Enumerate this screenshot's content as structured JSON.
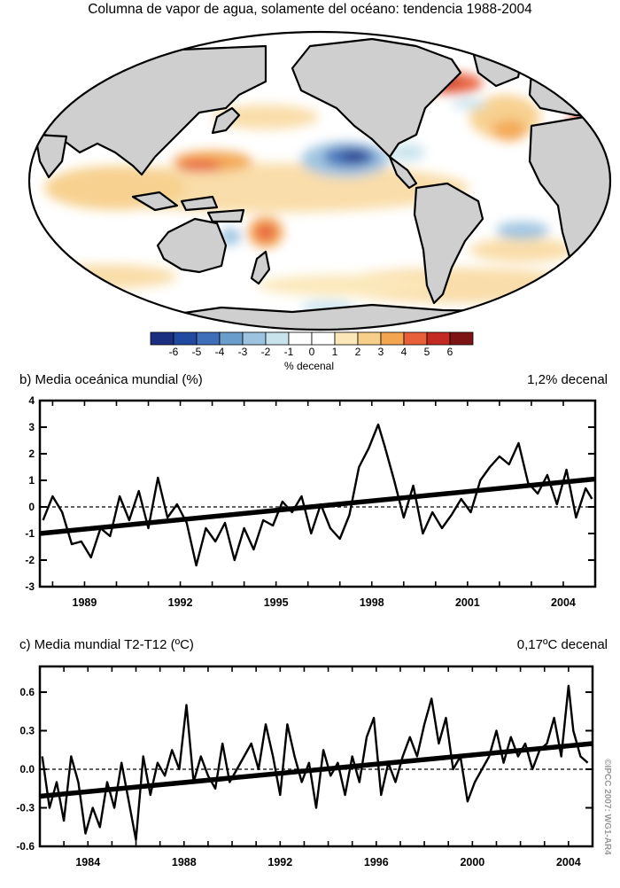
{
  "map": {
    "title": "Columna de vapor de agua, solamente del océano: tendencia 1988-2004",
    "colorbar": {
      "ticks": [
        "-6",
        "-5",
        "-4",
        "-3",
        "-2",
        "-1",
        "0",
        "1",
        "2",
        "3",
        "4",
        "5",
        "6"
      ],
      "colors": [
        "#1a2f80",
        "#2249a0",
        "#3f6fb8",
        "#6a9ccc",
        "#9cc3e0",
        "#c8e3ec",
        "#ffffff",
        "#ffffff",
        "#fbe7b8",
        "#f7cf8a",
        "#f3a64f",
        "#e8603a",
        "#c22a22",
        "#7f1414"
      ],
      "unit_label": "% decenal"
    }
  },
  "panel_b": {
    "label": "b) Media oceánica mundial (%)",
    "trend_label": "1,2% decenal"
  },
  "panel_c": {
    "label": "c) Media mundial T2-T12 (ºC)",
    "trend_label": "0,17ºC decenal"
  },
  "watermark": "©IPCC 2007: WG1-AR4",
  "chart_data": [
    {
      "type": "line",
      "title": "b) Media oceánica mundial (%)",
      "xlabel": "",
      "ylabel": "%",
      "xlim": [
        1987.6,
        2005.0
      ],
      "ylim": [
        -3,
        4
      ],
      "xticks": [
        1989,
        1992,
        1995,
        1998,
        2001,
        2004
      ],
      "yticks": [
        -3,
        -2,
        -1,
        0,
        1,
        2,
        3,
        4
      ],
      "series": [
        {
          "name": "anomaly",
          "x": [
            1987.7,
            1988.0,
            1988.3,
            1988.6,
            1988.9,
            1989.2,
            1989.5,
            1989.8,
            1990.1,
            1990.4,
            1990.7,
            1991.0,
            1991.3,
            1991.6,
            1991.9,
            1992.2,
            1992.5,
            1992.8,
            1993.1,
            1993.4,
            1993.7,
            1994.0,
            1994.3,
            1994.6,
            1994.9,
            1995.2,
            1995.5,
            1995.8,
            1996.1,
            1996.4,
            1996.7,
            1997.0,
            1997.3,
            1997.6,
            1997.9,
            1998.2,
            1998.4,
            1998.7,
            1999.0,
            1999.3,
            1999.6,
            1999.9,
            2000.2,
            2000.5,
            2000.8,
            2001.1,
            2001.4,
            2001.7,
            2002.0,
            2002.3,
            2002.6,
            2002.9,
            2003.2,
            2003.5,
            2003.8,
            2004.1,
            2004.4,
            2004.7,
            2004.9
          ],
          "y": [
            -0.5,
            0.4,
            -0.2,
            -1.4,
            -1.3,
            -1.9,
            -0.8,
            -1.1,
            0.4,
            -0.5,
            0.6,
            -0.8,
            1.1,
            -0.4,
            0.1,
            -0.6,
            -2.2,
            -0.8,
            -1.3,
            -0.6,
            -2.0,
            -0.8,
            -1.6,
            -0.5,
            -0.7,
            0.2,
            -0.2,
            0.4,
            -1.0,
            0.1,
            -0.8,
            -1.2,
            -0.3,
            1.5,
            2.2,
            3.1,
            2.3,
            1.0,
            -0.4,
            0.8,
            -1.0,
            -0.2,
            -0.8,
            -0.3,
            0.3,
            -0.2,
            1.0,
            1.5,
            1.9,
            1.6,
            2.4,
            0.9,
            0.5,
            1.2,
            0.1,
            1.4,
            -0.4,
            0.7,
            0.3
          ]
        },
        {
          "name": "trend",
          "x": [
            1987.6,
            2005.0
          ],
          "y": [
            -1.0,
            1.05
          ]
        }
      ]
    },
    {
      "type": "line",
      "title": "c) Media mundial T2-T12 (ºC)",
      "xlabel": "",
      "ylabel": "ºC",
      "xlim": [
        1982.0,
        2005.0
      ],
      "ylim": [
        -0.6,
        0.8
      ],
      "xticks": [
        1984,
        1988,
        1992,
        1996,
        2000,
        2004
      ],
      "yticks": [
        -0.6,
        -0.3,
        0.0,
        0.3,
        0.6
      ],
      "series": [
        {
          "name": "anomaly",
          "x": [
            1982.1,
            1982.4,
            1982.7,
            1983.0,
            1983.3,
            1983.6,
            1983.9,
            1984.2,
            1984.5,
            1984.8,
            1985.1,
            1985.4,
            1985.7,
            1986.0,
            1986.3,
            1986.6,
            1986.9,
            1987.2,
            1987.5,
            1987.8,
            1988.1,
            1988.4,
            1988.7,
            1989.0,
            1989.3,
            1989.6,
            1989.9,
            1990.2,
            1990.5,
            1990.8,
            1991.1,
            1991.4,
            1991.7,
            1992.0,
            1992.3,
            1992.6,
            1992.9,
            1993.2,
            1993.5,
            1993.8,
            1994.1,
            1994.4,
            1994.7,
            1995.0,
            1995.3,
            1995.6,
            1995.9,
            1996.2,
            1996.5,
            1996.8,
            1997.1,
            1997.4,
            1997.7,
            1998.0,
            1998.3,
            1998.6,
            1998.9,
            1999.2,
            1999.5,
            1999.8,
            2000.1,
            2000.4,
            2000.7,
            2001.0,
            2001.3,
            2001.6,
            2001.9,
            2002.2,
            2002.5,
            2002.8,
            2003.1,
            2003.4,
            2003.7,
            2004.0,
            2004.2,
            2004.5,
            2004.8
          ],
          "y": [
            0.1,
            -0.3,
            -0.1,
            -0.4,
            0.1,
            -0.1,
            -0.5,
            -0.3,
            -0.45,
            -0.1,
            -0.3,
            0.05,
            -0.25,
            -0.55,
            0.1,
            -0.2,
            0.05,
            -0.05,
            0.15,
            0.0,
            0.5,
            -0.1,
            0.1,
            -0.05,
            -0.15,
            0.2,
            -0.1,
            0.0,
            0.1,
            0.2,
            0.0,
            0.35,
            0.1,
            -0.2,
            0.35,
            0.1,
            -0.1,
            0.05,
            -0.3,
            0.15,
            -0.05,
            0.05,
            -0.2,
            0.1,
            -0.1,
            0.25,
            0.4,
            -0.2,
            0.05,
            -0.1,
            0.1,
            0.25,
            0.1,
            0.35,
            0.55,
            0.2,
            0.4,
            0.0,
            0.1,
            -0.25,
            -0.1,
            0.0,
            0.1,
            0.3,
            0.05,
            0.25,
            0.1,
            0.2,
            0.0,
            0.15,
            0.2,
            0.4,
            0.1,
            0.65,
            0.3,
            0.1,
            0.05
          ]
        },
        {
          "name": "trend",
          "x": [
            1982.0,
            2005.0
          ],
          "y": [
            -0.21,
            0.2
          ]
        }
      ]
    }
  ]
}
